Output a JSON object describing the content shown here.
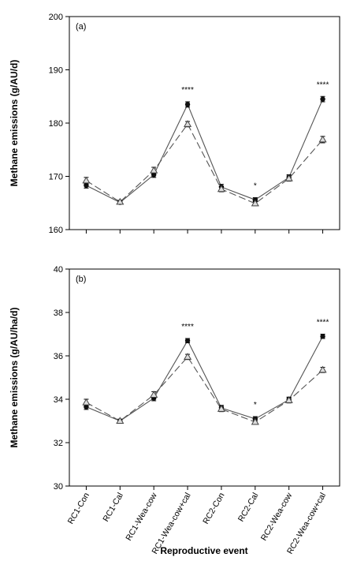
{
  "figure": {
    "xlabel": "Reproductive event",
    "categories": [
      "RC1-Con",
      "RC1-Cal",
      "RC1-Wea-cow",
      "RC1-Wea-cow+cal",
      "RC2-Con",
      "RC2-Cal",
      "RC2-Wea-cow",
      "RC2-Wea-cow+cal"
    ]
  },
  "chart_data": [
    {
      "type": "line",
      "panel_label": "(a)",
      "ylabel": "Methane emissions (g/AU/d)",
      "categories": [
        "RC1-Con",
        "RC1-Cal",
        "RC1-Wea-cow",
        "RC1-Wea-cow+cal",
        "RC2-Con",
        "RC2-Cal",
        "RC2-Wea-cow",
        "RC2-Wea-cow+cal"
      ],
      "ylim": [
        160,
        200
      ],
      "yticks": [
        "160",
        "170",
        "180",
        "190",
        "200"
      ],
      "series": [
        {
          "values": [
            168.3,
            165.1,
            170.3,
            183.5,
            168.0,
            165.6,
            169.8,
            184.5
          ],
          "errors": [
            0.5,
            0.3,
            0.5,
            0.5,
            0.5,
            0.4,
            0.5,
            0.5
          ],
          "marker": "circle",
          "line": "solid",
          "color": "#555555"
        },
        {
          "values": [
            169.2,
            165.2,
            171.1,
            179.8,
            167.6,
            164.9,
            169.6,
            176.9
          ],
          "errors": [
            0.6,
            0.3,
            0.6,
            0.5,
            0.5,
            0.4,
            0.5,
            0.6
          ],
          "marker": "triangle",
          "line": "dashed",
          "color": "#555555"
        }
      ],
      "annotations": [
        {
          "category": "RC1-Wea-cow+cal",
          "text": "****"
        },
        {
          "category": "RC2-Cal",
          "text": "*"
        },
        {
          "category": "RC2-Wea-cow+cal",
          "text": "****"
        }
      ],
      "grid": false
    },
    {
      "type": "line",
      "panel_label": "(b)",
      "ylabel": "Methane emissions (g/AU/ha/d)",
      "categories": [
        "RC1-Con",
        "RC1-Cal",
        "RC1-Wea-cow",
        "RC1-Wea-cow+cal",
        "RC2-Con",
        "RC2-Cal",
        "RC2-Wea-cow",
        "RC2-Wea-cow+cal"
      ],
      "ylim": [
        30,
        40
      ],
      "yticks": [
        "30",
        "32",
        "34",
        "36",
        "38",
        "40"
      ],
      "series": [
        {
          "values": [
            33.65,
            33.0,
            34.05,
            36.7,
            33.6,
            33.1,
            33.98,
            36.9
          ],
          "errors": [
            0.12,
            0.08,
            0.12,
            0.1,
            0.12,
            0.1,
            0.12,
            0.1
          ],
          "marker": "circle",
          "line": "solid",
          "color": "#555555"
        },
        {
          "values": [
            33.85,
            33.0,
            34.2,
            35.95,
            33.55,
            32.95,
            33.95,
            35.35
          ],
          "errors": [
            0.15,
            0.08,
            0.15,
            0.12,
            0.12,
            0.1,
            0.12,
            0.12
          ],
          "marker": "triangle",
          "line": "dashed",
          "color": "#555555"
        }
      ],
      "annotations": [
        {
          "category": "RC1-Wea-cow+cal",
          "text": "****"
        },
        {
          "category": "RC2-Cal",
          "text": "*"
        },
        {
          "category": "RC2-Wea-cow+cal",
          "text": "****"
        }
      ],
      "grid": false
    }
  ]
}
